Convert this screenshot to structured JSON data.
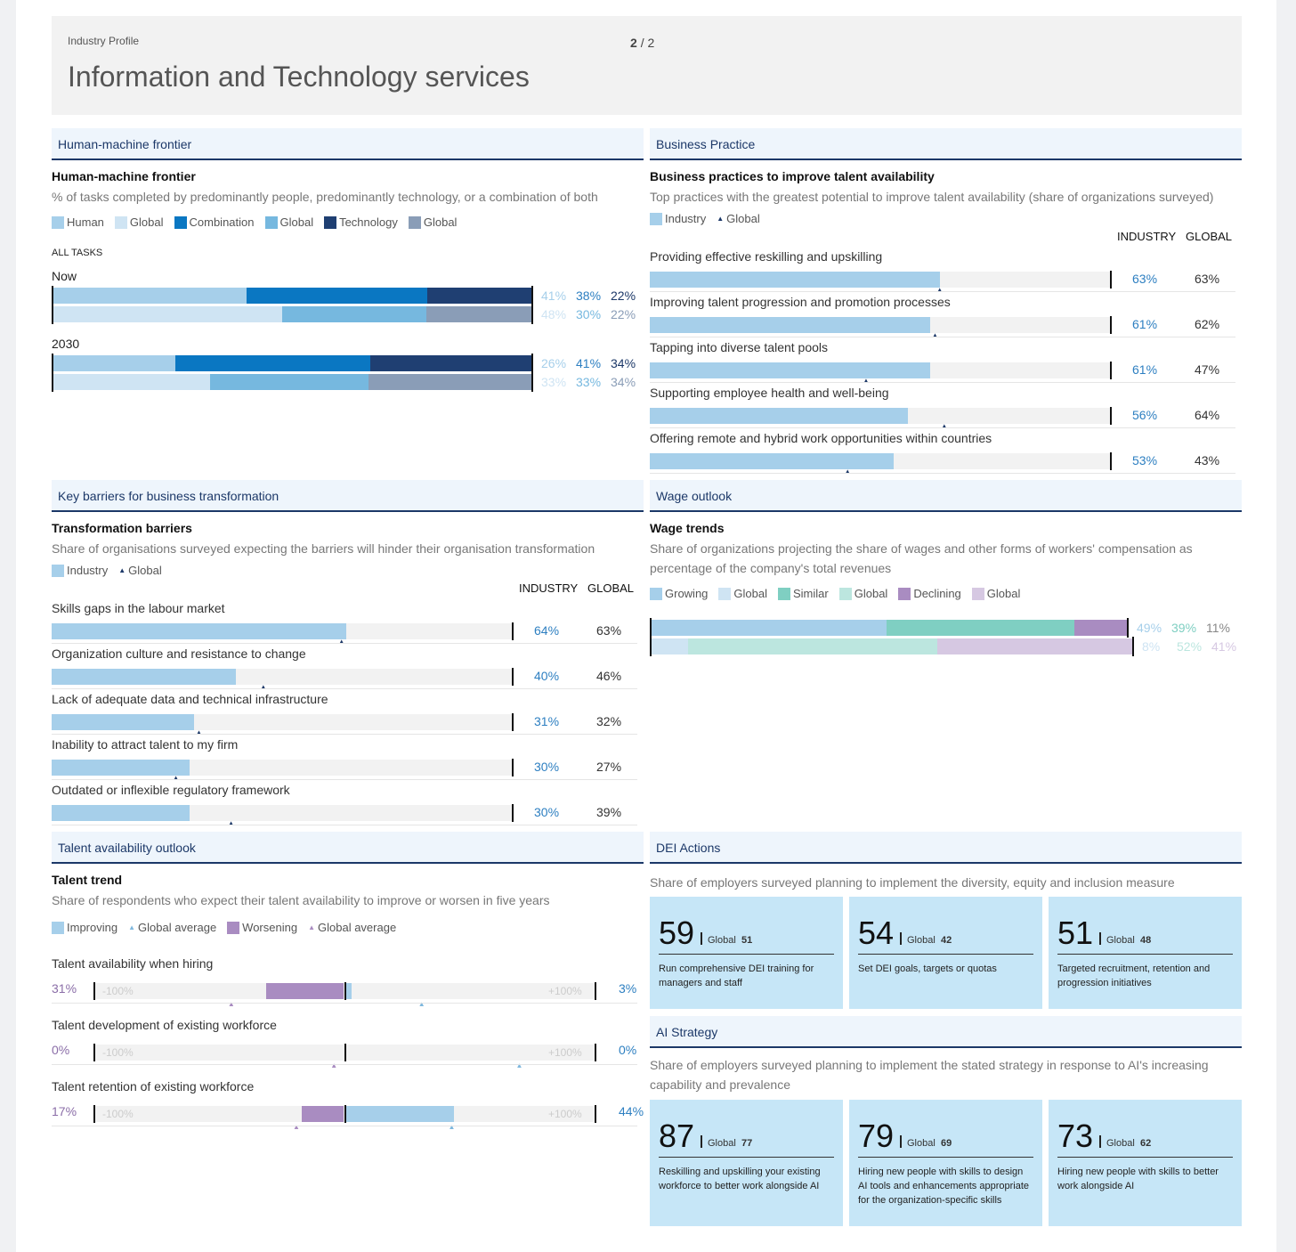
{
  "header": {
    "subtitle": "Industry Profile",
    "title": "Information and Technology services",
    "page_current": "2",
    "page_sep": "/",
    "page_total": "2"
  },
  "hmf": {
    "section": "Human-machine frontier",
    "title": "Human-machine frontier",
    "subtitle": "% of tasks completed by predominantly people, predominantly technology, or a combination of both",
    "legend": [
      "Human",
      "Global",
      "Combination",
      "Global",
      "Technology",
      "Global"
    ],
    "all_tasks": "ALL TASKS",
    "groups": [
      {
        "label": "Now",
        "industry": [
          41,
          38,
          22
        ],
        "global": [
          48,
          30,
          22
        ],
        "industry_labels": [
          "41%",
          "38%",
          "22%"
        ],
        "global_labels": [
          "48%",
          "30%",
          "22%"
        ]
      },
      {
        "label": "2030",
        "industry": [
          26,
          41,
          34
        ],
        "global": [
          33,
          33,
          34
        ],
        "industry_labels": [
          "26%",
          "41%",
          "34%"
        ],
        "global_labels": [
          "33%",
          "33%",
          "34%"
        ]
      }
    ]
  },
  "bp": {
    "section": "Business Practice",
    "title": "Business practices to improve talent availability",
    "subtitle": "Top practices with the greatest potential to improve talent availability (share of organizations surveyed)",
    "legend_industry": "Industry",
    "legend_global": "Global",
    "col_industry": "INDUSTRY",
    "col_global": "GLOBAL",
    "items": [
      {
        "label": "Providing effective reskilling and upskilling",
        "industry": 63,
        "global": 63,
        "industry_label": "63%",
        "global_label": "63%"
      },
      {
        "label": "Improving talent progression and promotion processes",
        "industry": 61,
        "global": 62,
        "industry_label": "61%",
        "global_label": "62%"
      },
      {
        "label": "Tapping into diverse talent pools",
        "industry": 61,
        "global": 47,
        "industry_label": "61%",
        "global_label": "47%"
      },
      {
        "label": "Supporting employee health and well-being",
        "industry": 56,
        "global": 64,
        "industry_label": "56%",
        "global_label": "64%"
      },
      {
        "label": "Offering remote and hybrid work opportunities within countries",
        "industry": 53,
        "global": 43,
        "industry_label": "53%",
        "global_label": "43%"
      }
    ]
  },
  "kb": {
    "section": "Key barriers for business transformation",
    "title": "Transformation barriers",
    "subtitle": "Share of organisations surveyed expecting the barriers will hinder their organisation transformation",
    "legend_industry": "Industry",
    "legend_global": "Global",
    "col_industry": "INDUSTRY",
    "col_global": "GLOBAL",
    "items": [
      {
        "label": "Skills gaps in the labour market",
        "industry": 64,
        "global": 63,
        "industry_label": "64%",
        "global_label": "63%"
      },
      {
        "label": "Organization culture and resistance to change",
        "industry": 40,
        "global": 46,
        "industry_label": "40%",
        "global_label": "46%"
      },
      {
        "label": "Lack of adequate data and technical infrastructure",
        "industry": 31,
        "global": 32,
        "industry_label": "31%",
        "global_label": "32%"
      },
      {
        "label": "Inability to attract talent to my firm",
        "industry": 30,
        "global": 27,
        "industry_label": "30%",
        "global_label": "27%"
      },
      {
        "label": "Outdated or inflexible regulatory framework",
        "industry": 30,
        "global": 39,
        "industry_label": "30%",
        "global_label": "39%"
      }
    ]
  },
  "wage": {
    "section": "Wage outlook",
    "title": "Wage trends",
    "subtitle": "Share of organizations projecting the share of wages and other forms of workers' compensation as percentage of the company's total revenues",
    "legend": [
      "Growing",
      "Global",
      "Similar",
      "Global",
      "Declining",
      "Global"
    ],
    "industry": [
      49,
      39,
      11
    ],
    "global": [
      8,
      52,
      41
    ],
    "industry_labels": [
      "49%",
      "39%",
      "11%"
    ],
    "global_labels": [
      "8%",
      "52%",
      "41%"
    ]
  },
  "talent": {
    "section": "Talent availability outlook",
    "title": "Talent trend",
    "subtitle": "Share of respondents who expect their talent availability to improve or worsen in five years",
    "legend": [
      "Improving",
      "Global average",
      "Worsening",
      "Global average"
    ],
    "axis_min": "-100%",
    "axis_max": "+100%",
    "items": [
      {
        "label": "Talent availability when hiring",
        "worsening": 31,
        "improving": 3,
        "global_worsening": 45,
        "global_improving": 31,
        "worsening_label": "31%",
        "improving_label": "3%"
      },
      {
        "label": "Talent development of existing workforce",
        "worsening": 0,
        "improving": 0,
        "global_worsening": 4,
        "global_improving": 70,
        "worsening_label": "0%",
        "improving_label": "0%"
      },
      {
        "label": "Talent retention of existing workforce",
        "worsening": 17,
        "improving": 44,
        "global_worsening": 19,
        "global_improving": 43,
        "worsening_label": "17%",
        "improving_label": "44%"
      }
    ]
  },
  "dei": {
    "section": "DEI Actions",
    "subtitle": "Share of employers surveyed planning to implement the diversity, equity and inclusion measure",
    "global_word": "Global",
    "cards": [
      {
        "value": "59",
        "global": "51",
        "desc": "Run comprehensive DEI training for managers and staff"
      },
      {
        "value": "54",
        "global": "42",
        "desc": "Set DEI goals, targets or quotas"
      },
      {
        "value": "51",
        "global": "48",
        "desc": "Targeted recruitment, retention and progression initiatives"
      }
    ]
  },
  "ai": {
    "section": "AI Strategy",
    "subtitle": "Share of employers surveyed planning to implement the stated strategy in response to AI's increasing capability and prevalence",
    "global_word": "Global",
    "cards": [
      {
        "value": "87",
        "global": "77",
        "desc": "Reskilling and upskilling your existing workforce to better work alongside AI"
      },
      {
        "value": "79",
        "global": "69",
        "desc": "Hiring new people with skills to design AI tools and enhancements appropriate for the organization-specific skills"
      },
      {
        "value": "73",
        "global": "62",
        "desc": "Hiring new people with skills to better work alongside AI"
      }
    ]
  },
  "colors": {
    "human": "#a6cfea",
    "human_g": "#cfe4f3",
    "comb": "#0a77c2",
    "comb_g": "#76b8df",
    "tech": "#1f3f72",
    "tech_g": "#8a9db7",
    "grow": "#a6cfea",
    "grow_g": "#cfe4f3",
    "sim": "#7fcfc2",
    "sim_g": "#bce6df",
    "dec": "#a98cc1",
    "dec_g": "#d6c8e2",
    "improving": "#a6cfea",
    "worsening": "#a98cc1"
  }
}
